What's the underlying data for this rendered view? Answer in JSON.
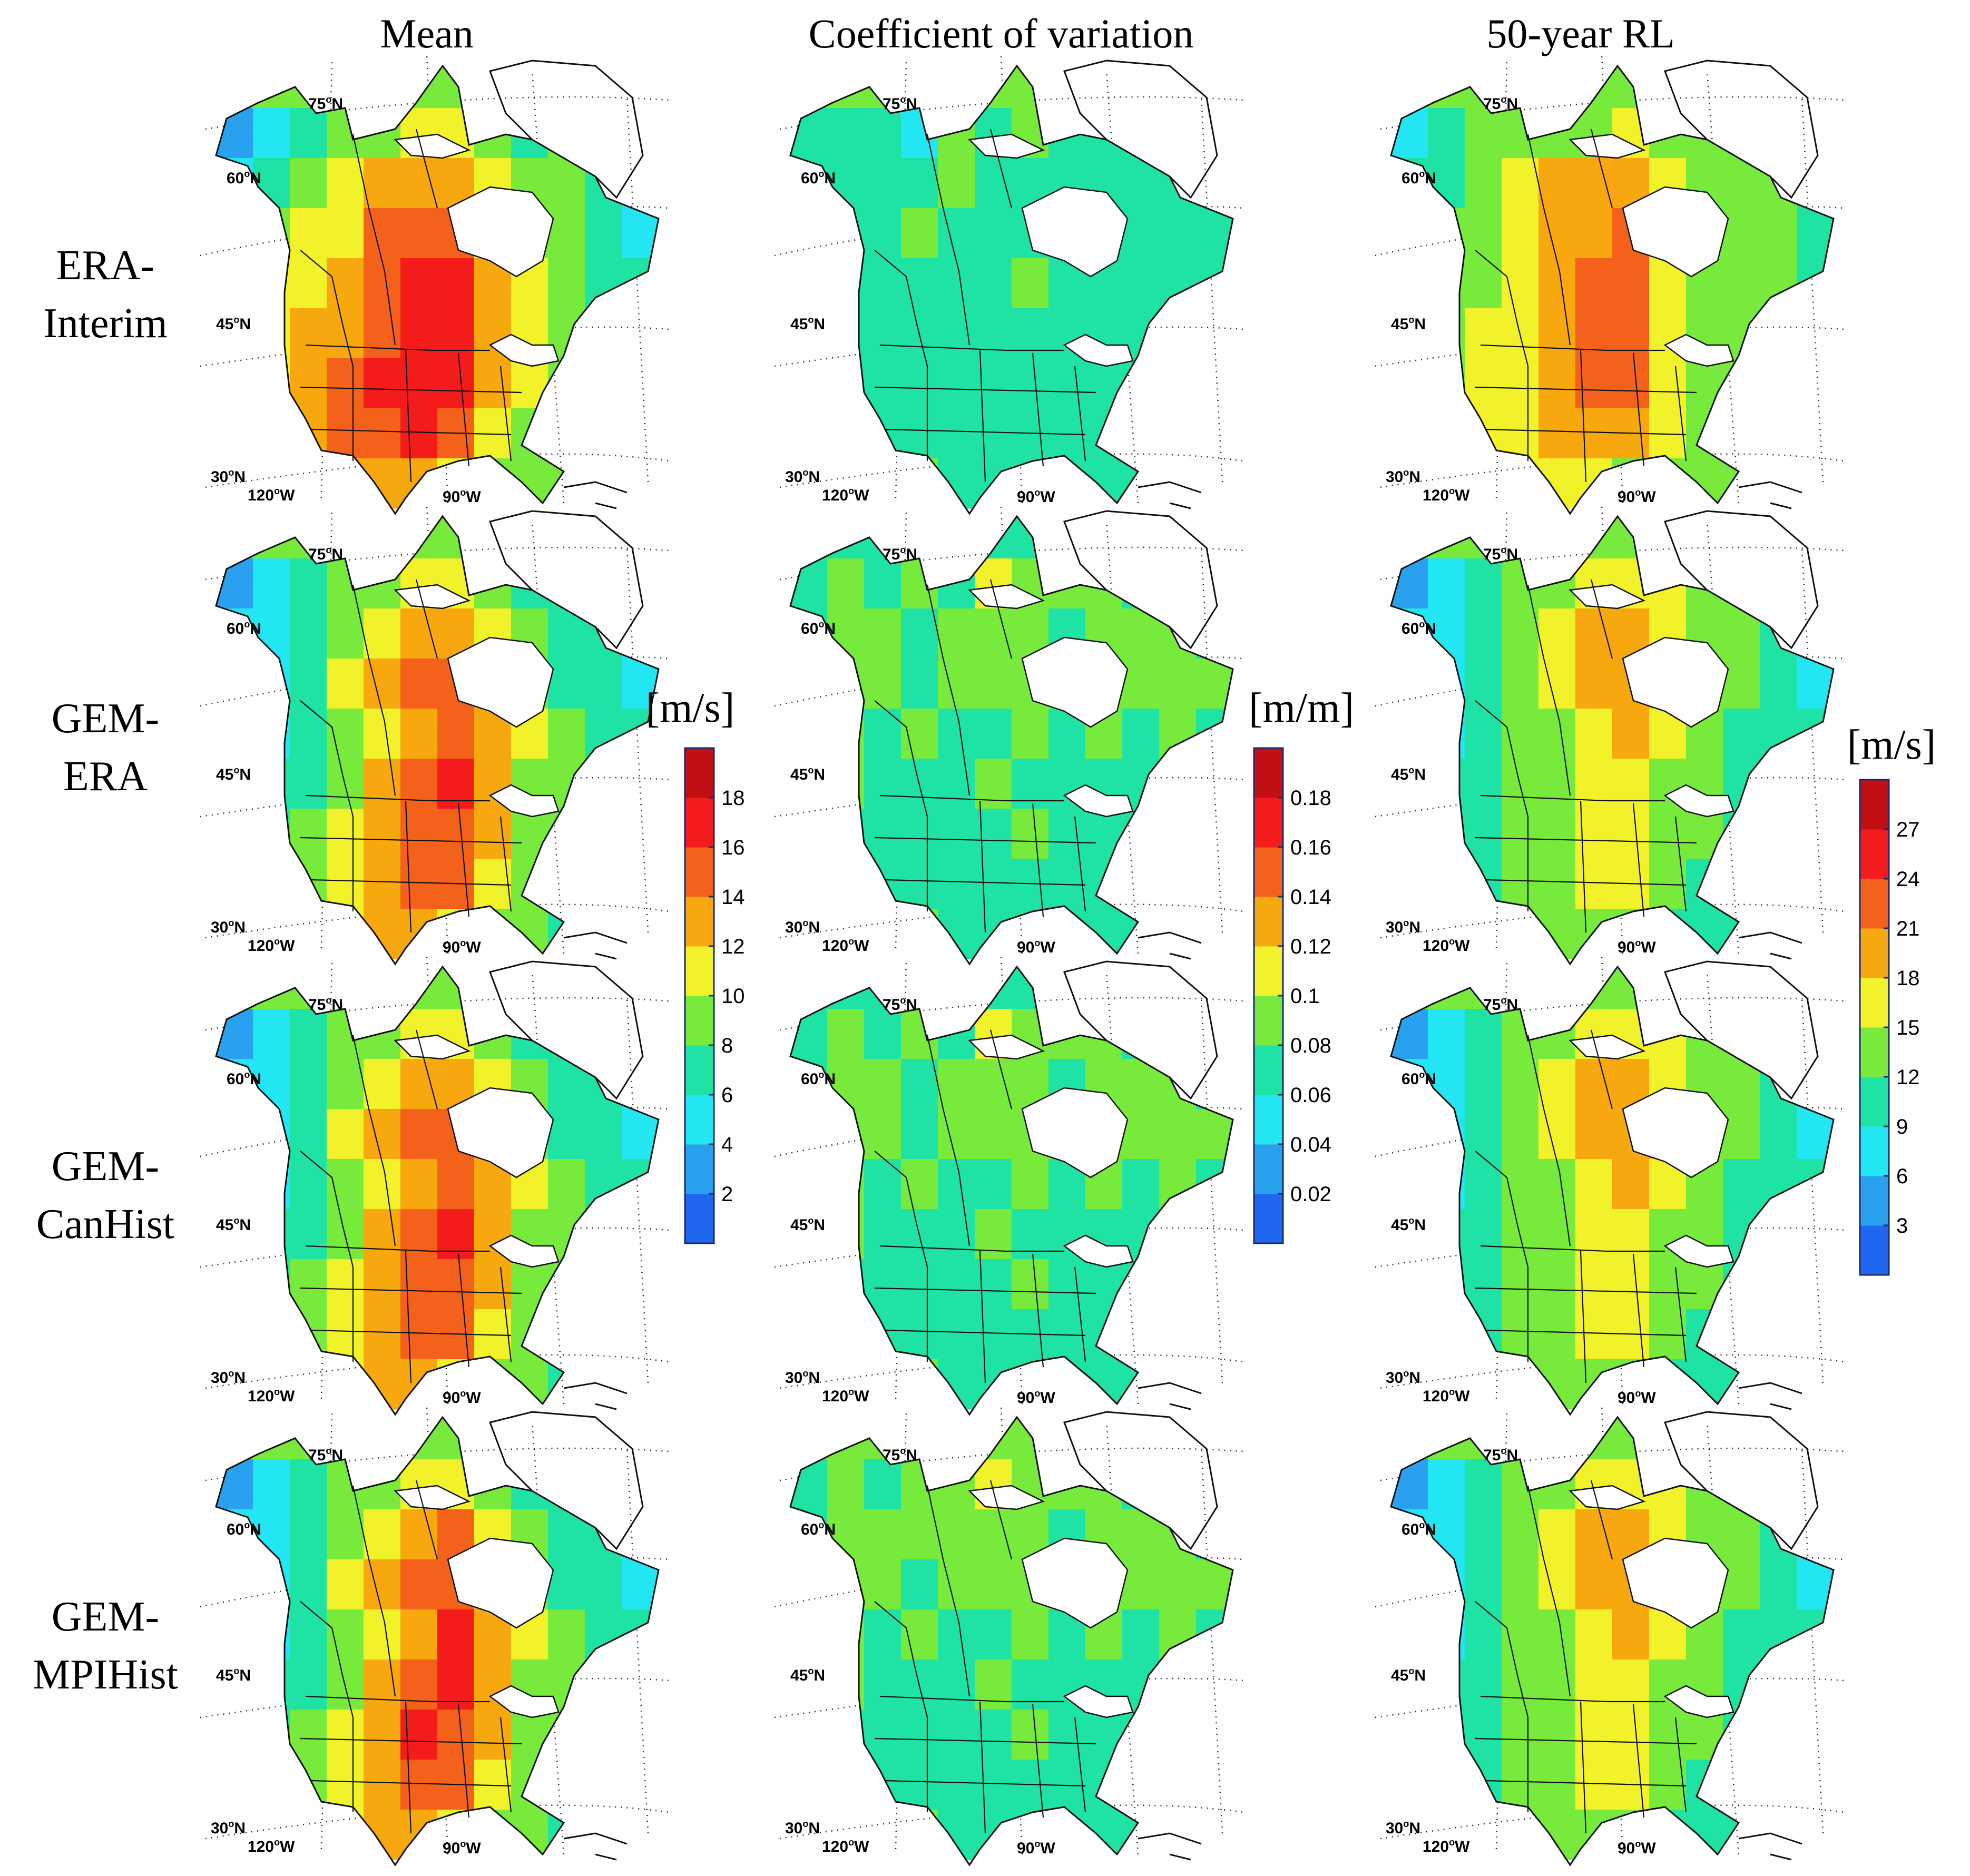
{
  "column_titles": [
    "Mean",
    "Coefficient of variation",
    "50-year RL"
  ],
  "row_labels": [
    {
      "line1": "ERA-",
      "line2": "Interim"
    },
    {
      "line1": "GEM-",
      "line2": "ERA"
    },
    {
      "line1": "GEM-",
      "line2": "CanHist"
    },
    {
      "line1": "GEM-",
      "line2": "MPIHist"
    }
  ],
  "map_labels": {
    "lat_75": "75",
    "lat_60": "60",
    "lat_45": "45",
    "lat_30": "30",
    "lon_120": "120",
    "lon_90": "90",
    "deg": "o",
    "north": "N",
    "west": "W"
  },
  "colorbars": [
    {
      "unit": "[m/s]",
      "ticks": [
        "2",
        "4",
        "6",
        "8",
        "10",
        "12",
        "14",
        "16",
        "18"
      ]
    },
    {
      "unit": "[m/m]",
      "ticks": [
        "0.02",
        "0.04",
        "0.06",
        "0.08",
        "0.1",
        "0.12",
        "0.14",
        "0.16",
        "0.18"
      ]
    },
    {
      "unit": "[m/s]",
      "ticks": [
        "3",
        "6",
        "9",
        "12",
        "15",
        "18",
        "21",
        "24",
        "27"
      ]
    }
  ],
  "colormap": [
    "#1f66f0",
    "#2aa1ee",
    "#22e6f2",
    "#1fe3a4",
    "#77ea3c",
    "#f2f22a",
    "#f7a80f",
    "#f4611b",
    "#f41b1b",
    "#c10f14"
  ],
  "levels": [
    [
      [
        [
          1,
          2,
          3,
          4,
          4,
          5,
          5,
          4,
          3,
          4,
          4,
          2
        ],
        [
          2,
          3,
          4,
          5,
          6,
          6,
          6,
          5,
          4,
          4,
          3,
          2
        ],
        [
          3,
          4,
          5,
          5,
          7,
          7,
          7,
          5,
          4,
          4,
          3,
          2
        ],
        [
          4,
          5,
          5,
          6,
          7,
          8,
          8,
          6,
          5,
          4,
          3,
          3
        ],
        [
          4,
          5,
          6,
          6,
          7,
          8,
          8,
          6,
          5,
          4,
          3,
          3
        ],
        [
          4,
          5,
          6,
          7,
          8,
          8,
          8,
          6,
          5,
          4,
          4,
          3
        ],
        [
          4,
          5,
          6,
          7,
          7,
          8,
          7,
          5,
          4,
          4,
          5,
          3
        ],
        [
          3,
          4,
          5,
          6,
          6,
          6,
          5,
          4,
          4,
          4,
          5,
          3
        ]
      ],
      [
        [
          3,
          3,
          3,
          2,
          4,
          3,
          4,
          3,
          3,
          3,
          4,
          2
        ],
        [
          3,
          3,
          3,
          3,
          4,
          3,
          3,
          3,
          3,
          3,
          3,
          3
        ],
        [
          3,
          3,
          3,
          4,
          3,
          3,
          3,
          3,
          3,
          3,
          3,
          3
        ],
        [
          3,
          3,
          3,
          3,
          3,
          3,
          4,
          3,
          3,
          3,
          3,
          3
        ],
        [
          3,
          3,
          3,
          3,
          3,
          3,
          3,
          3,
          3,
          3,
          3,
          3
        ],
        [
          3,
          3,
          3,
          3,
          3,
          3,
          3,
          3,
          3,
          3,
          3,
          3
        ],
        [
          3,
          3,
          3,
          3,
          3,
          3,
          3,
          3,
          3,
          3,
          3,
          3
        ],
        [
          3,
          3,
          3,
          4,
          3,
          3,
          3,
          3,
          3,
          3,
          4,
          3
        ]
      ],
      [
        [
          2,
          3,
          4,
          4,
          4,
          4,
          5,
          4,
          4,
          4,
          4,
          3
        ],
        [
          3,
          3,
          4,
          5,
          6,
          6,
          6,
          5,
          4,
          4,
          4,
          3
        ],
        [
          3,
          4,
          4,
          5,
          6,
          6,
          7,
          5,
          4,
          4,
          4,
          3
        ],
        [
          4,
          4,
          4,
          5,
          6,
          7,
          7,
          5,
          4,
          4,
          4,
          3
        ],
        [
          4,
          4,
          5,
          5,
          6,
          7,
          7,
          5,
          4,
          4,
          4,
          4
        ],
        [
          4,
          4,
          5,
          5,
          6,
          7,
          7,
          5,
          4,
          4,
          4,
          4
        ],
        [
          4,
          4,
          5,
          5,
          6,
          6,
          6,
          5,
          4,
          4,
          4,
          4
        ],
        [
          4,
          4,
          4,
          5,
          5,
          5,
          4,
          4,
          4,
          4,
          4,
          4
        ]
      ]
    ],
    [
      [
        [
          1,
          2,
          3,
          4,
          4,
          5,
          5,
          4,
          3,
          3,
          3,
          2
        ],
        [
          2,
          2,
          3,
          4,
          5,
          6,
          6,
          5,
          4,
          3,
          3,
          2
        ],
        [
          2,
          2,
          3,
          5,
          6,
          7,
          7,
          6,
          4,
          3,
          3,
          2
        ],
        [
          2,
          2,
          3,
          4,
          5,
          6,
          7,
          6,
          5,
          4,
          3,
          3
        ],
        [
          2,
          3,
          3,
          4,
          6,
          7,
          8,
          6,
          4,
          4,
          3,
          3
        ],
        [
          2,
          3,
          4,
          5,
          6,
          7,
          7,
          6,
          4,
          4,
          3,
          3
        ],
        [
          3,
          3,
          4,
          5,
          6,
          7,
          7,
          5,
          4,
          3,
          3,
          3
        ],
        [
          3,
          3,
          4,
          5,
          6,
          6,
          5,
          4,
          4,
          3,
          4,
          3
        ]
      ],
      [
        [
          3,
          4,
          3,
          4,
          3,
          5,
          4,
          4,
          4,
          3,
          4,
          3
        ],
        [
          3,
          4,
          4,
          3,
          4,
          4,
          4,
          3,
          4,
          4,
          4,
          3
        ],
        [
          3,
          4,
          4,
          3,
          4,
          4,
          4,
          4,
          4,
          4,
          4,
          4
        ],
        [
          3,
          4,
          3,
          4,
          3,
          3,
          4,
          3,
          4,
          3,
          4,
          3
        ],
        [
          3,
          4,
          3,
          3,
          3,
          4,
          3,
          3,
          3,
          3,
          3,
          3
        ],
        [
          3,
          3,
          3,
          3,
          3,
          3,
          4,
          3,
          3,
          3,
          3,
          3
        ],
        [
          3,
          3,
          3,
          3,
          3,
          3,
          3,
          3,
          3,
          3,
          3,
          3
        ],
        [
          3,
          3,
          3,
          4,
          3,
          3,
          3,
          3,
          3,
          3,
          4,
          3
        ]
      ],
      [
        [
          1,
          2,
          3,
          4,
          4,
          5,
          5,
          5,
          4,
          4,
          4,
          2
        ],
        [
          2,
          2,
          3,
          4,
          5,
          6,
          6,
          5,
          4,
          4,
          3,
          2
        ],
        [
          2,
          2,
          3,
          4,
          5,
          6,
          6,
          6,
          4,
          4,
          3,
          2
        ],
        [
          2,
          2,
          3,
          4,
          4,
          5,
          6,
          5,
          4,
          3,
          3,
          3
        ],
        [
          2,
          3,
          3,
          4,
          4,
          5,
          5,
          4,
          4,
          3,
          3,
          3
        ],
        [
          2,
          3,
          3,
          4,
          4,
          5,
          5,
          4,
          4,
          3,
          3,
          3
        ],
        [
          3,
          3,
          3,
          4,
          4,
          5,
          5,
          4,
          3,
          3,
          3,
          3
        ],
        [
          3,
          3,
          3,
          4,
          4,
          4,
          4,
          3,
          3,
          3,
          4,
          3
        ]
      ]
    ],
    [
      [
        [
          1,
          2,
          3,
          4,
          4,
          5,
          5,
          4,
          3,
          3,
          3,
          2
        ],
        [
          2,
          2,
          3,
          4,
          5,
          6,
          6,
          5,
          4,
          3,
          3,
          2
        ],
        [
          2,
          2,
          3,
          5,
          6,
          7,
          7,
          6,
          4,
          3,
          3,
          2
        ],
        [
          2,
          2,
          3,
          4,
          5,
          6,
          7,
          6,
          5,
          4,
          3,
          3
        ],
        [
          2,
          3,
          3,
          4,
          6,
          7,
          8,
          6,
          4,
          4,
          3,
          3
        ],
        [
          2,
          3,
          4,
          5,
          6,
          7,
          7,
          6,
          4,
          4,
          3,
          3
        ],
        [
          3,
          3,
          4,
          5,
          6,
          7,
          7,
          5,
          4,
          3,
          3,
          3
        ],
        [
          3,
          3,
          4,
          5,
          6,
          6,
          5,
          4,
          4,
          3,
          4,
          3
        ]
      ],
      [
        [
          3,
          4,
          3,
          4,
          3,
          5,
          4,
          4,
          4,
          3,
          4,
          3
        ],
        [
          3,
          4,
          4,
          3,
          4,
          4,
          4,
          3,
          4,
          4,
          4,
          3
        ],
        [
          3,
          4,
          4,
          3,
          4,
          4,
          4,
          4,
          4,
          4,
          4,
          4
        ],
        [
          3,
          4,
          3,
          4,
          3,
          3,
          4,
          3,
          4,
          3,
          4,
          3
        ],
        [
          3,
          4,
          3,
          3,
          3,
          4,
          3,
          3,
          3,
          3,
          3,
          3
        ],
        [
          3,
          3,
          3,
          3,
          3,
          3,
          4,
          3,
          3,
          3,
          3,
          3
        ],
        [
          3,
          3,
          3,
          3,
          3,
          3,
          3,
          3,
          3,
          3,
          3,
          3
        ],
        [
          3,
          3,
          3,
          4,
          3,
          3,
          3,
          3,
          3,
          3,
          4,
          3
        ]
      ],
      [
        [
          1,
          2,
          3,
          4,
          4,
          5,
          5,
          5,
          4,
          4,
          4,
          2
        ],
        [
          2,
          2,
          3,
          4,
          5,
          6,
          6,
          5,
          4,
          4,
          3,
          2
        ],
        [
          2,
          2,
          3,
          4,
          5,
          6,
          6,
          6,
          4,
          4,
          3,
          2
        ],
        [
          2,
          2,
          3,
          4,
          4,
          5,
          6,
          5,
          4,
          3,
          3,
          3
        ],
        [
          2,
          3,
          3,
          4,
          4,
          5,
          5,
          4,
          4,
          3,
          3,
          3
        ],
        [
          2,
          3,
          3,
          4,
          4,
          5,
          5,
          4,
          4,
          3,
          3,
          3
        ],
        [
          3,
          3,
          3,
          4,
          4,
          5,
          5,
          4,
          3,
          3,
          3,
          3
        ],
        [
          3,
          3,
          3,
          4,
          4,
          4,
          4,
          3,
          3,
          3,
          4,
          3
        ]
      ]
    ],
    [
      [
        [
          1,
          2,
          3,
          4,
          4,
          5,
          5,
          4,
          3,
          3,
          3,
          2
        ],
        [
          2,
          2,
          3,
          4,
          5,
          6,
          7,
          5,
          4,
          3,
          3,
          2
        ],
        [
          2,
          2,
          3,
          5,
          6,
          7,
          7,
          6,
          4,
          3,
          3,
          2
        ],
        [
          2,
          2,
          3,
          4,
          5,
          6,
          8,
          6,
          5,
          4,
          3,
          3
        ],
        [
          2,
          3,
          3,
          4,
          6,
          7,
          8,
          6,
          4,
          4,
          3,
          3
        ],
        [
          2,
          3,
          4,
          5,
          6,
          8,
          7,
          6,
          4,
          4,
          3,
          3
        ],
        [
          3,
          3,
          4,
          5,
          6,
          7,
          7,
          5,
          4,
          3,
          3,
          3
        ],
        [
          3,
          3,
          4,
          5,
          6,
          6,
          5,
          4,
          4,
          3,
          5,
          3
        ]
      ],
      [
        [
          3,
          4,
          3,
          4,
          4,
          5,
          4,
          4,
          4,
          3,
          4,
          3
        ],
        [
          3,
          4,
          4,
          4,
          4,
          4,
          4,
          3,
          4,
          4,
          4,
          3
        ],
        [
          3,
          4,
          4,
          3,
          4,
          4,
          4,
          4,
          4,
          4,
          4,
          4
        ],
        [
          3,
          4,
          3,
          4,
          3,
          3,
          4,
          3,
          4,
          3,
          4,
          3
        ],
        [
          3,
          4,
          3,
          3,
          3,
          4,
          3,
          3,
          3,
          3,
          3,
          3
        ],
        [
          3,
          3,
          3,
          3,
          3,
          3,
          4,
          3,
          3,
          3,
          3,
          3
        ],
        [
          3,
          3,
          3,
          3,
          3,
          3,
          3,
          3,
          3,
          3,
          3,
          3
        ],
        [
          3,
          3,
          4,
          4,
          3,
          3,
          3,
          3,
          3,
          3,
          5,
          3
        ]
      ],
      [
        [
          1,
          2,
          3,
          4,
          4,
          5,
          5,
          5,
          4,
          4,
          4,
          2
        ],
        [
          2,
          2,
          3,
          4,
          5,
          6,
          6,
          5,
          4,
          4,
          3,
          2
        ],
        [
          2,
          2,
          3,
          4,
          5,
          6,
          6,
          6,
          4,
          4,
          3,
          2
        ],
        [
          2,
          2,
          3,
          4,
          4,
          5,
          6,
          5,
          4,
          3,
          3,
          3
        ],
        [
          2,
          3,
          3,
          4,
          4,
          5,
          5,
          4,
          4,
          3,
          3,
          3
        ],
        [
          2,
          3,
          3,
          4,
          4,
          5,
          5,
          4,
          4,
          3,
          3,
          3
        ],
        [
          3,
          3,
          3,
          4,
          4,
          5,
          5,
          4,
          3,
          3,
          3,
          3
        ],
        [
          3,
          3,
          3,
          4,
          4,
          4,
          4,
          3,
          3,
          3,
          4,
          3
        ]
      ]
    ]
  ]
}
